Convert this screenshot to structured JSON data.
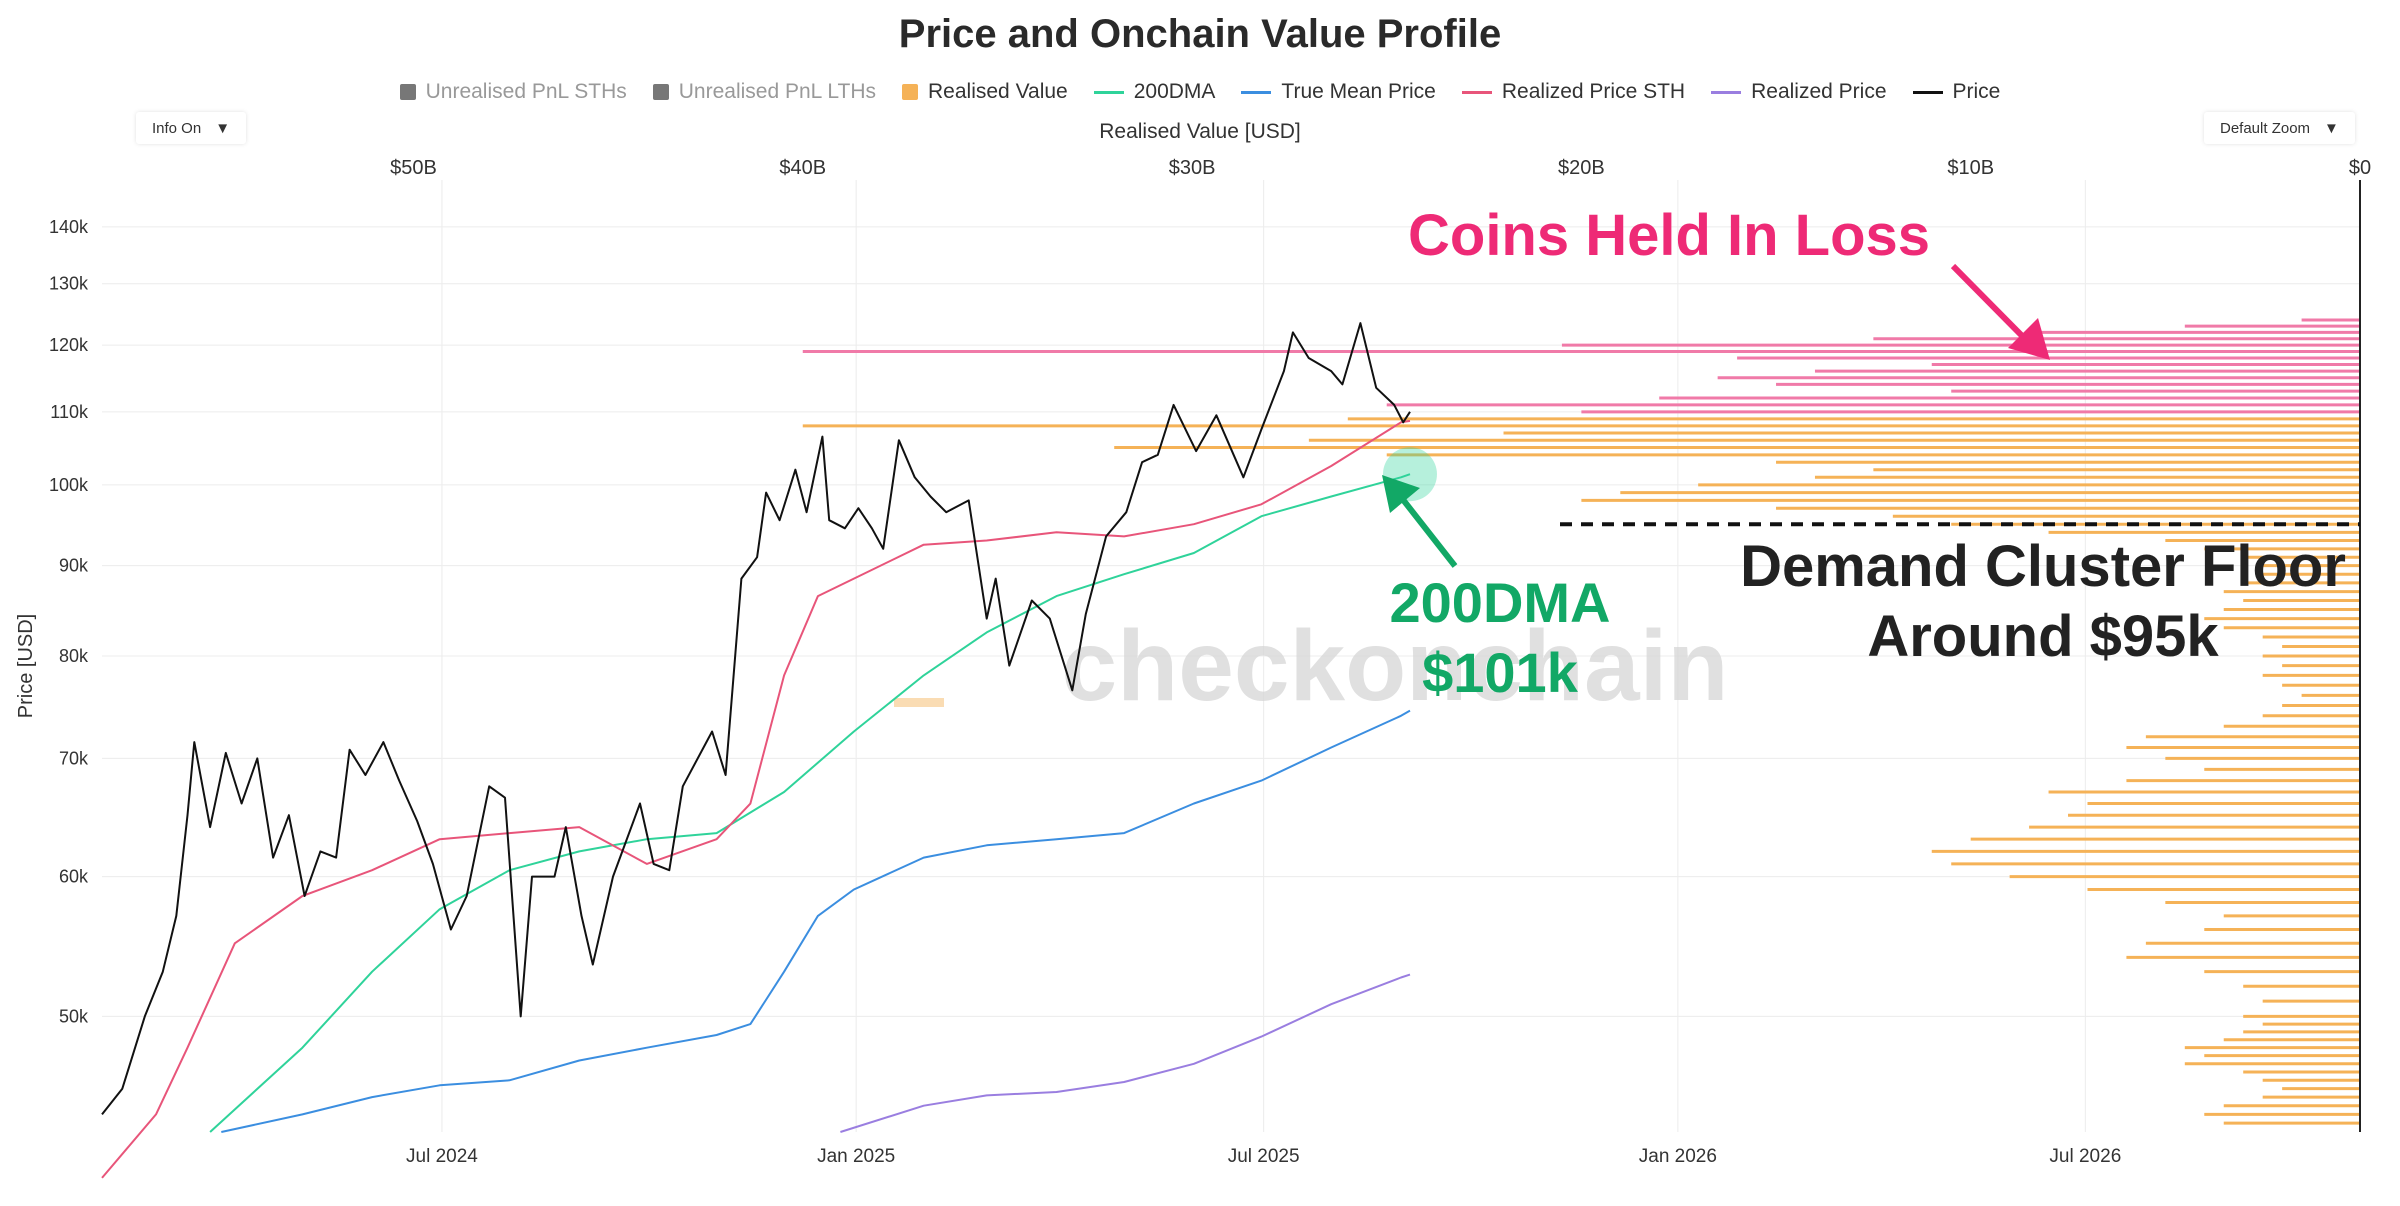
{
  "title": "Price and Onchain Value Profile",
  "legend": [
    {
      "label": "Unrealised PnL STHs",
      "kind": "box",
      "color": "#777777",
      "active": false
    },
    {
      "label": "Unrealised PnL LTHs",
      "kind": "box",
      "color": "#777777",
      "active": false
    },
    {
      "label": "Realised Value",
      "kind": "box",
      "color": "#f5b257",
      "active": true
    },
    {
      "label": "200DMA",
      "kind": "line",
      "color": "#2fd39a",
      "active": true
    },
    {
      "label": "True Mean Price",
      "kind": "line",
      "color": "#3b8ee0",
      "active": true
    },
    {
      "label": "Realized Price STH",
      "kind": "line",
      "color": "#e8557a",
      "active": true
    },
    {
      "label": "Realized Price",
      "kind": "line",
      "color": "#9a7ee0",
      "active": true
    },
    {
      "label": "Price",
      "kind": "line",
      "color": "#111111",
      "active": true
    }
  ],
  "controls": {
    "info_label": "Info On",
    "zoom_label": "Default Zoom",
    "caret": "▼"
  },
  "watermark": "checkonchain",
  "annotations": {
    "coins_loss": "Coins Held In Loss",
    "dma_line1": "200DMA",
    "dma_line2": "$101k",
    "floor_line1": "Demand Cluster Floor",
    "floor_line2": "Around $95k"
  },
  "colors": {
    "realised_value": "#f5b257",
    "loss_profile": "#f07aa8",
    "dma200": "#2fd39a",
    "true_mean": "#3b8ee0",
    "sth": "#e8557a",
    "realized": "#9a7ee0",
    "price": "#111111",
    "annotation_pink": "#ee2a76",
    "annotation_green": "#12a866",
    "annotation_dark": "#222222"
  },
  "chart_data": {
    "type": "line",
    "title": "Price and Onchain Value Profile",
    "ylabel": "Price [USD]",
    "x2label": "Realised Value [USD]",
    "y_scale": "log",
    "ylim": [
      43000,
      145000
    ],
    "xlim": [
      "2024-02-01",
      "2026-10-31"
    ],
    "x_ticks": [
      {
        "label": "Jul 2024",
        "date": "2024-07-01"
      },
      {
        "label": "Jan 2025",
        "date": "2025-01-01"
      },
      {
        "label": "Jul 2025",
        "date": "2025-07-01"
      },
      {
        "label": "Jan 2026",
        "date": "2026-01-01"
      },
      {
        "label": "Jul 2026",
        "date": "2026-07-01"
      }
    ],
    "y_ticks": [
      {
        "label": "50k",
        "value": 50000
      },
      {
        "label": "60k",
        "value": 60000
      },
      {
        "label": "70k",
        "value": 70000
      },
      {
        "label": "80k",
        "value": 80000
      },
      {
        "label": "90k",
        "value": 90000
      },
      {
        "label": "100k",
        "value": 100000
      },
      {
        "label": "110k",
        "value": 110000
      },
      {
        "label": "120k",
        "value": 120000
      },
      {
        "label": "130k",
        "value": 130000
      },
      {
        "label": "140k",
        "value": 140000
      }
    ],
    "x2lim": [
      58,
      0
    ],
    "x2_ticks": [
      {
        "label": "$50B",
        "value": 50
      },
      {
        "label": "$40B",
        "value": 40
      },
      {
        "label": "$30B",
        "value": 30
      },
      {
        "label": "$20B",
        "value": 20
      },
      {
        "label": "$10B",
        "value": 10
      },
      {
        "label": "$0",
        "value": 0
      }
    ],
    "series": [
      {
        "name": "Price",
        "color": "#111111",
        "width": 2,
        "points": [
          [
            "2024-02-01",
            44000
          ],
          [
            "2024-02-10",
            45500
          ],
          [
            "2024-02-20",
            50000
          ],
          [
            "2024-02-28",
            53000
          ],
          [
            "2024-03-05",
            57000
          ],
          [
            "2024-03-10",
            65000
          ],
          [
            "2024-03-13",
            71500
          ],
          [
            "2024-03-20",
            64000
          ],
          [
            "2024-03-27",
            70500
          ],
          [
            "2024-04-03",
            66000
          ],
          [
            "2024-04-10",
            70000
          ],
          [
            "2024-04-17",
            61500
          ],
          [
            "2024-04-24",
            65000
          ],
          [
            "2024-05-01",
            58500
          ],
          [
            "2024-05-08",
            62000
          ],
          [
            "2024-05-15",
            61500
          ],
          [
            "2024-05-21",
            70800
          ],
          [
            "2024-05-28",
            68500
          ],
          [
            "2024-06-05",
            71500
          ],
          [
            "2024-06-12",
            68000
          ],
          [
            "2024-06-20",
            64500
          ],
          [
            "2024-06-27",
            61000
          ],
          [
            "2024-07-05",
            56000
          ],
          [
            "2024-07-12",
            58500
          ],
          [
            "2024-07-22",
            67500
          ],
          [
            "2024-07-29",
            66500
          ],
          [
            "2024-08-05",
            50000
          ],
          [
            "2024-08-10",
            60000
          ],
          [
            "2024-08-20",
            60000
          ],
          [
            "2024-08-25",
            64000
          ],
          [
            "2024-09-01",
            57000
          ],
          [
            "2024-09-06",
            53500
          ],
          [
            "2024-09-15",
            60000
          ],
          [
            "2024-09-27",
            66000
          ],
          [
            "2024-10-03",
            61000
          ],
          [
            "2024-10-10",
            60500
          ],
          [
            "2024-10-16",
            67500
          ],
          [
            "2024-10-29",
            72500
          ],
          [
            "2024-11-04",
            68500
          ],
          [
            "2024-11-11",
            88500
          ],
          [
            "2024-11-18",
            91000
          ],
          [
            "2024-11-22",
            99000
          ],
          [
            "2024-11-28",
            95500
          ],
          [
            "2024-12-05",
            102000
          ],
          [
            "2024-12-10",
            96500
          ],
          [
            "2024-12-17",
            106500
          ],
          [
            "2024-12-20",
            95500
          ],
          [
            "2024-12-27",
            94500
          ],
          [
            "2025-01-02",
            97000
          ],
          [
            "2025-01-08",
            94500
          ],
          [
            "2025-01-13",
            92000
          ],
          [
            "2025-01-20",
            106000
          ],
          [
            "2025-01-27",
            101000
          ],
          [
            "2025-02-03",
            98500
          ],
          [
            "2025-02-10",
            96500
          ],
          [
            "2025-02-20",
            98000
          ],
          [
            "2025-02-28",
            84000
          ],
          [
            "2025-03-04",
            88500
          ],
          [
            "2025-03-10",
            79000
          ],
          [
            "2025-03-20",
            86000
          ],
          [
            "2025-03-28",
            84000
          ],
          [
            "2025-04-07",
            76500
          ],
          [
            "2025-04-13",
            84500
          ],
          [
            "2025-04-22",
            93500
          ],
          [
            "2025-05-01",
            96500
          ],
          [
            "2025-05-08",
            103000
          ],
          [
            "2025-05-15",
            104000
          ],
          [
            "2025-05-22",
            111000
          ],
          [
            "2025-06-01",
            104500
          ],
          [
            "2025-06-10",
            109500
          ],
          [
            "2025-06-22",
            101000
          ],
          [
            "2025-06-30",
            107500
          ],
          [
            "2025-07-10",
            116000
          ],
          [
            "2025-07-14",
            122000
          ],
          [
            "2025-07-21",
            118000
          ],
          [
            "2025-07-31",
            116000
          ],
          [
            "2025-08-05",
            114000
          ],
          [
            "2025-08-13",
            123500
          ],
          [
            "2025-08-20",
            113500
          ],
          [
            "2025-08-28",
            111000
          ],
          [
            "2025-09-01",
            108500
          ],
          [
            "2025-09-04",
            110000
          ]
        ]
      },
      {
        "name": "Realized Price STH",
        "color": "#e8557a",
        "width": 2,
        "points": [
          [
            "2024-02-01",
            40500
          ],
          [
            "2024-02-25",
            44000
          ],
          [
            "2024-03-10",
            48000
          ],
          [
            "2024-03-31",
            55000
          ],
          [
            "2024-04-30",
            58500
          ],
          [
            "2024-05-31",
            60500
          ],
          [
            "2024-06-30",
            63000
          ],
          [
            "2024-07-31",
            63500
          ],
          [
            "2024-08-31",
            64000
          ],
          [
            "2024-09-30",
            61000
          ],
          [
            "2024-10-31",
            63000
          ],
          [
            "2024-11-15",
            66000
          ],
          [
            "2024-11-30",
            78000
          ],
          [
            "2024-12-15",
            86500
          ],
          [
            "2024-12-31",
            88500
          ],
          [
            "2025-01-31",
            92500
          ],
          [
            "2025-02-28",
            93000
          ],
          [
            "2025-03-31",
            94000
          ],
          [
            "2025-04-30",
            93500
          ],
          [
            "2025-05-31",
            95000
          ],
          [
            "2025-06-30",
            97500
          ],
          [
            "2025-07-31",
            102500
          ],
          [
            "2025-08-31",
            108500
          ],
          [
            "2025-09-04",
            108700
          ]
        ]
      },
      {
        "name": "200DMA",
        "color": "#2fd39a",
        "width": 2,
        "points": [
          [
            "2024-03-20",
            43000
          ],
          [
            "2024-04-30",
            48000
          ],
          [
            "2024-05-31",
            53000
          ],
          [
            "2024-06-30",
            57500
          ],
          [
            "2024-07-31",
            60500
          ],
          [
            "2024-08-31",
            62000
          ],
          [
            "2024-09-30",
            63000
          ],
          [
            "2024-10-31",
            63500
          ],
          [
            "2024-11-30",
            67000
          ],
          [
            "2024-12-31",
            72500
          ],
          [
            "2025-01-31",
            78000
          ],
          [
            "2025-02-28",
            82500
          ],
          [
            "2025-03-31",
            86500
          ],
          [
            "2025-04-30",
            89000
          ],
          [
            "2025-05-31",
            91500
          ],
          [
            "2025-06-30",
            96000
          ],
          [
            "2025-07-31",
            98500
          ],
          [
            "2025-08-31",
            101000
          ],
          [
            "2025-09-04",
            101400
          ]
        ]
      },
      {
        "name": "True Mean Price",
        "color": "#3b8ee0",
        "width": 2,
        "points": [
          [
            "2024-03-25",
            43000
          ],
          [
            "2024-04-30",
            44000
          ],
          [
            "2024-05-31",
            45000
          ],
          [
            "2024-06-30",
            45700
          ],
          [
            "2024-07-31",
            46000
          ],
          [
            "2024-08-31",
            47200
          ],
          [
            "2024-09-30",
            48000
          ],
          [
            "2024-10-31",
            48800
          ],
          [
            "2024-11-15",
            49500
          ],
          [
            "2024-11-30",
            53000
          ],
          [
            "2024-12-15",
            57000
          ],
          [
            "2024-12-31",
            59000
          ],
          [
            "2025-01-31",
            61500
          ],
          [
            "2025-02-28",
            62500
          ],
          [
            "2025-03-31",
            63000
          ],
          [
            "2025-04-30",
            63500
          ],
          [
            "2025-05-31",
            66000
          ],
          [
            "2025-06-30",
            68000
          ],
          [
            "2025-07-31",
            71000
          ],
          [
            "2025-08-31",
            74000
          ],
          [
            "2025-09-04",
            74500
          ]
        ]
      },
      {
        "name": "Realized Price",
        "color": "#9a7ee0",
        "width": 2,
        "points": [
          [
            "2024-12-25",
            43000
          ],
          [
            "2025-01-31",
            44500
          ],
          [
            "2025-02-28",
            45100
          ],
          [
            "2025-03-31",
            45300
          ],
          [
            "2025-04-30",
            45900
          ],
          [
            "2025-05-31",
            47000
          ],
          [
            "2025-06-30",
            48700
          ],
          [
            "2025-07-31",
            50800
          ],
          [
            "2025-08-31",
            52600
          ],
          [
            "2025-09-04",
            52800
          ]
        ]
      }
    ],
    "realised_value_profile": [
      [
        43500,
        3.5
      ],
      [
        44000,
        4.0
      ],
      [
        44500,
        3.5
      ],
      [
        45000,
        2.5
      ],
      [
        45500,
        2.0
      ],
      [
        46000,
        2.5
      ],
      [
        46500,
        3.0
      ],
      [
        47000,
        4.5
      ],
      [
        47500,
        4.0
      ],
      [
        48000,
        4.5
      ],
      [
        48500,
        3.5
      ],
      [
        49000,
        3.0
      ],
      [
        49500,
        2.5
      ],
      [
        50000,
        3.0
      ],
      [
        51000,
        2.5
      ],
      [
        52000,
        3.0
      ],
      [
        53000,
        4.0
      ],
      [
        54000,
        6.0
      ],
      [
        55000,
        5.5
      ],
      [
        56000,
        4.0
      ],
      [
        57000,
        3.5
      ],
      [
        58000,
        5.0
      ],
      [
        59000,
        7.0
      ],
      [
        60000,
        9.0
      ],
      [
        61000,
        10.5
      ],
      [
        62000,
        11.0
      ],
      [
        63000,
        10.0
      ],
      [
        64000,
        8.5
      ],
      [
        65000,
        7.5
      ],
      [
        66000,
        7.0
      ],
      [
        67000,
        8.0
      ],
      [
        68000,
        6.0
      ],
      [
        69000,
        4.0
      ],
      [
        70000,
        5.0
      ],
      [
        71000,
        6.0
      ],
      [
        72000,
        5.5
      ],
      [
        73000,
        3.5
      ],
      [
        74000,
        2.5
      ],
      [
        75000,
        2.0
      ],
      [
        76000,
        1.5
      ],
      [
        77000,
        2.0
      ],
      [
        78000,
        2.5
      ],
      [
        79000,
        2.0
      ],
      [
        80000,
        2.5
      ],
      [
        81000,
        2.0
      ],
      [
        82000,
        2.5
      ],
      [
        83000,
        3.5
      ],
      [
        84000,
        4.0
      ],
      [
        85000,
        3.5
      ],
      [
        86000,
        3.0
      ],
      [
        87000,
        3.5
      ],
      [
        88000,
        3.0
      ],
      [
        89000,
        2.5
      ],
      [
        90000,
        2.5
      ],
      [
        91000,
        3.0
      ],
      [
        92000,
        4.0
      ],
      [
        93000,
        5.0
      ],
      [
        94000,
        8.0
      ],
      [
        95000,
        10.5
      ],
      [
        96000,
        12.0
      ],
      [
        97000,
        15.0
      ],
      [
        98000,
        20.0
      ],
      [
        99000,
        19.0
      ],
      [
        100000,
        17.0
      ],
      [
        101000,
        14.0
      ],
      [
        102000,
        12.5
      ],
      [
        103000,
        15.0
      ],
      [
        104000,
        25.0
      ],
      [
        105000,
        32.0
      ],
      [
        106000,
        27.0
      ],
      [
        107000,
        22.0
      ],
      [
        108000,
        40.0
      ],
      [
        109000,
        26.0
      ]
    ],
    "loss_profile": [
      [
        110000,
        20.0
      ],
      [
        111000,
        25.0
      ],
      [
        112000,
        18.0
      ],
      [
        113000,
        10.5
      ],
      [
        114000,
        15.0
      ],
      [
        115000,
        16.5
      ],
      [
        116000,
        14.0
      ],
      [
        117000,
        11.0
      ],
      [
        118000,
        16.0
      ],
      [
        119000,
        40.0
      ],
      [
        120000,
        20.5
      ],
      [
        121000,
        12.5
      ],
      [
        122000,
        8.5
      ],
      [
        123000,
        4.5
      ],
      [
        124000,
        1.5
      ]
    ],
    "guide_line": {
      "label": "Demand Cluster Floor",
      "value": 95000
    },
    "highlight_point": {
      "date": "2025-09-04",
      "value": 101400
    }
  }
}
